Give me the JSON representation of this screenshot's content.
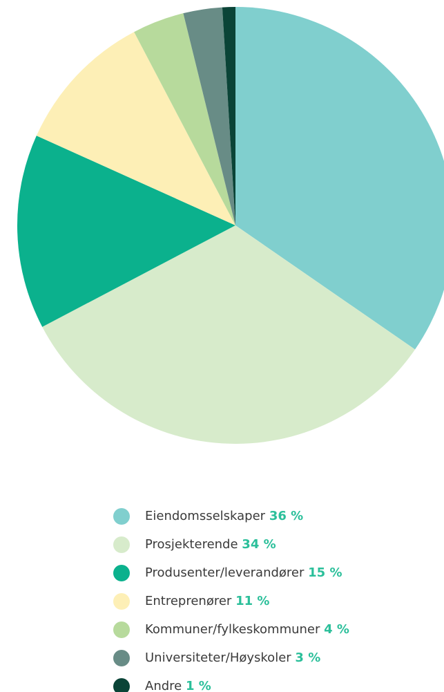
{
  "chart_data": {
    "type": "pie",
    "categories": [
      "Eiendomsselskaper",
      "Prosjekterende",
      "Produsenter/leverandører",
      "Entreprenører",
      "Kommuner/fylkeskommuner",
      "Universiteter/Høyskoler",
      "Andre"
    ],
    "values": [
      36,
      34,
      15,
      11,
      4,
      3,
      1
    ],
    "value_labels": [
      "36 %",
      "34 %",
      "15 %",
      "11 %",
      "4 %",
      "3 %",
      "1 %"
    ],
    "colors": [
      "#80cfce",
      "#d7ebcb",
      "#0bb18d",
      "#fdefb6",
      "#b7da9c",
      "#688c86",
      "#0a4437"
    ]
  }
}
